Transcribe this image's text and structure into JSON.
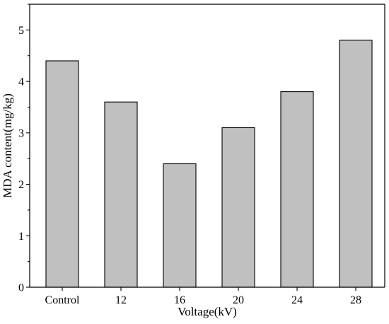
{
  "chart_data": {
    "type": "bar",
    "categories": [
      "Control",
      "12",
      "16",
      "20",
      "24",
      "28"
    ],
    "values": [
      4.4,
      3.6,
      2.4,
      3.1,
      3.8,
      4.8
    ],
    "title": "",
    "xlabel": "Voltage(kV)",
    "ylabel": "MDA content(mg/kg)",
    "ylim": [
      0,
      5.5
    ],
    "yticks": [
      0,
      1,
      2,
      3,
      4,
      5
    ],
    "grid": false,
    "legend": "none",
    "bar_color": "#c0c0c0",
    "bar_edge_color": "#000000",
    "axis_color": "#000000"
  }
}
